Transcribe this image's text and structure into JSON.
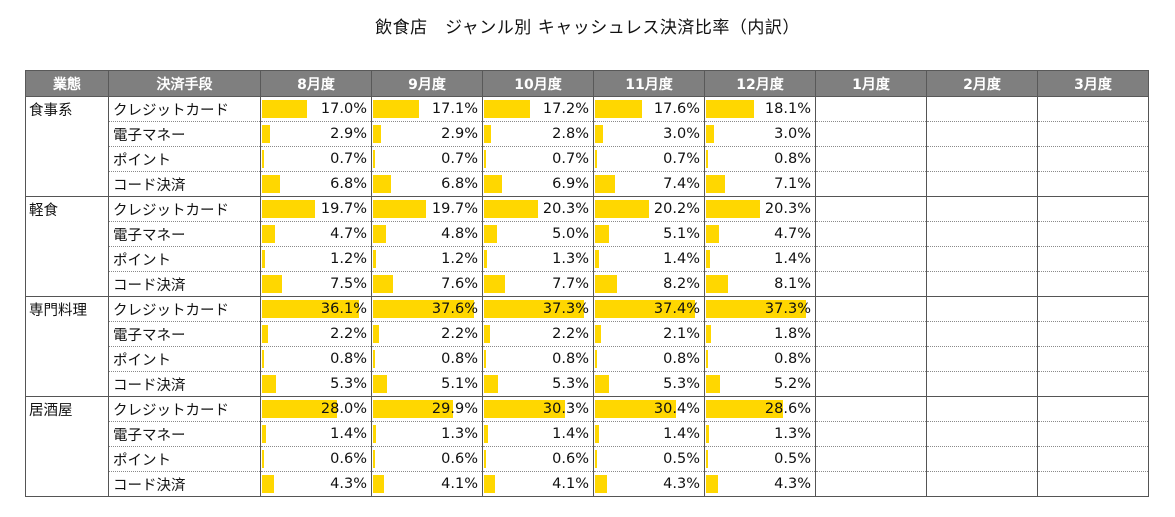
{
  "title": "飲食店　ジャンル別 キャッシュレス決済比率（内訳）",
  "columns": {
    "industry": "業態",
    "method": "決済手段",
    "months": [
      "8月度",
      "9月度",
      "10月度",
      "11月度",
      "12月度",
      "1月度",
      "2月度",
      "3月度"
    ]
  },
  "bar_color": "#ffd700",
  "bar_full_scale_percent": 40,
  "groups": [
    {
      "name": "食事系",
      "rows": [
        {
          "method": "クレジットカード",
          "values": [
            "17.0%",
            "17.1%",
            "17.2%",
            "17.6%",
            "18.1%",
            "",
            "",
            ""
          ]
        },
        {
          "method": "電子マネー",
          "values": [
            "2.9%",
            "2.9%",
            "2.8%",
            "3.0%",
            "3.0%",
            "",
            "",
            ""
          ]
        },
        {
          "method": "ポイント",
          "values": [
            "0.7%",
            "0.7%",
            "0.7%",
            "0.7%",
            "0.8%",
            "",
            "",
            ""
          ]
        },
        {
          "method": "コード決済",
          "values": [
            "6.8%",
            "6.8%",
            "6.9%",
            "7.4%",
            "7.1%",
            "",
            "",
            ""
          ]
        }
      ]
    },
    {
      "name": "軽食",
      "rows": [
        {
          "method": "クレジットカード",
          "values": [
            "19.7%",
            "19.7%",
            "20.3%",
            "20.2%",
            "20.3%",
            "",
            "",
            ""
          ]
        },
        {
          "method": "電子マネー",
          "values": [
            "4.7%",
            "4.8%",
            "5.0%",
            "5.1%",
            "4.7%",
            "",
            "",
            ""
          ]
        },
        {
          "method": "ポイント",
          "values": [
            "1.2%",
            "1.2%",
            "1.3%",
            "1.4%",
            "1.4%",
            "",
            "",
            ""
          ]
        },
        {
          "method": "コード決済",
          "values": [
            "7.5%",
            "7.6%",
            "7.7%",
            "8.2%",
            "8.1%",
            "",
            "",
            ""
          ]
        }
      ]
    },
    {
      "name": "専門料理",
      "rows": [
        {
          "method": "クレジットカード",
          "values": [
            "36.1%",
            "37.6%",
            "37.3%",
            "37.4%",
            "37.3%",
            "",
            "",
            ""
          ]
        },
        {
          "method": "電子マネー",
          "values": [
            "2.2%",
            "2.2%",
            "2.2%",
            "2.1%",
            "1.8%",
            "",
            "",
            ""
          ]
        },
        {
          "method": "ポイント",
          "values": [
            "0.8%",
            "0.8%",
            "0.8%",
            "0.8%",
            "0.8%",
            "",
            "",
            ""
          ]
        },
        {
          "method": "コード決済",
          "values": [
            "5.3%",
            "5.1%",
            "5.3%",
            "5.3%",
            "5.2%",
            "",
            "",
            ""
          ]
        }
      ]
    },
    {
      "name": "居酒屋",
      "rows": [
        {
          "method": "クレジットカード",
          "values": [
            "28.0%",
            "29.9%",
            "30.3%",
            "30.4%",
            "28.6%",
            "",
            "",
            ""
          ]
        },
        {
          "method": "電子マネー",
          "values": [
            "1.4%",
            "1.3%",
            "1.4%",
            "1.4%",
            "1.3%",
            "",
            "",
            ""
          ]
        },
        {
          "method": "ポイント",
          "values": [
            "0.6%",
            "0.6%",
            "0.6%",
            "0.5%",
            "0.5%",
            "",
            "",
            ""
          ]
        },
        {
          "method": "コード決済",
          "values": [
            "4.3%",
            "4.1%",
            "4.1%",
            "4.3%",
            "4.3%",
            "",
            "",
            ""
          ]
        }
      ]
    }
  ]
}
